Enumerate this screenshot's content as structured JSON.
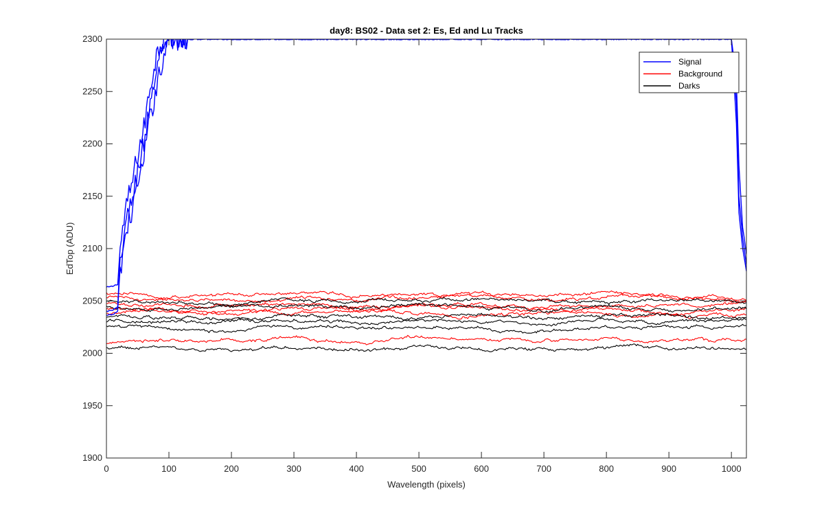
{
  "chart_data": {
    "type": "line",
    "title": "day8: BS02 - Data set 2: Es, Ed and Lu Tracks",
    "xlabel": "Wavelength (pixels)",
    "ylabel": "EdTop (ADU)",
    "xlim": [
      0,
      1024
    ],
    "ylim": [
      1900,
      2300
    ],
    "xticks": [
      0,
      100,
      200,
      300,
      400,
      500,
      600,
      700,
      800,
      900,
      1000
    ],
    "yticks": [
      1900,
      1950,
      2000,
      2050,
      2100,
      2150,
      2200,
      2250,
      2300
    ],
    "grid": false,
    "legend_location": "top-right",
    "legend": [
      {
        "label": "Signal",
        "color": "#0000ff"
      },
      {
        "label": "Background",
        "color": "#ff0000"
      },
      {
        "label": "Darks",
        "color": "#000000"
      }
    ],
    "series": [
      {
        "name": "Signal",
        "group": "Signal",
        "color": "#0000ff",
        "x": [
          0,
          10,
          18,
          22,
          30,
          40,
          50,
          60,
          70,
          80,
          90,
          100,
          110,
          120,
          1000,
          1008,
          1012,
          1018,
          1024
        ],
        "y": [
          2063,
          2064,
          2066,
          2100,
          2135,
          2160,
          2190,
          2215,
          2255,
          2285,
          2300,
          2300,
          2300,
          2300,
          2300,
          2260,
          2180,
          2120,
          2095
        ]
      },
      {
        "name": "Signal",
        "group": "Signal",
        "color": "#0000ff",
        "x": [
          0,
          10,
          18,
          22,
          30,
          40,
          50,
          60,
          70,
          80,
          90,
          100,
          110,
          120,
          1000,
          1008,
          1012,
          1018,
          1024
        ],
        "y": [
          2040,
          2041,
          2044,
          2090,
          2120,
          2145,
          2175,
          2200,
          2240,
          2270,
          2295,
          2300,
          2300,
          2300,
          2300,
          2240,
          2150,
          2110,
          2085
        ]
      },
      {
        "name": "Signal",
        "group": "Signal",
        "color": "#0000ff",
        "x": [
          0,
          10,
          18,
          22,
          30,
          40,
          50,
          60,
          70,
          80,
          90,
          100,
          110,
          120,
          1000,
          1008,
          1012,
          1018,
          1024
        ],
        "y": [
          2036,
          2037,
          2040,
          2080,
          2110,
          2135,
          2160,
          2185,
          2225,
          2255,
          2280,
          2300,
          2300,
          2300,
          2300,
          2220,
          2135,
          2100,
          2078
        ]
      },
      {
        "name": "Background",
        "group": "Background",
        "color": "#ff0000",
        "x": [
          0,
          100,
          200,
          300,
          400,
          500,
          600,
          700,
          800,
          900,
          1024
        ],
        "y": [
          2057,
          2054,
          2056,
          2057,
          2055,
          2058,
          2056,
          2054,
          2058,
          2055,
          2052
        ]
      },
      {
        "name": "Background",
        "group": "Background",
        "color": "#ff0000",
        "x": [
          0,
          100,
          200,
          300,
          400,
          500,
          600,
          700,
          800,
          900,
          1024
        ],
        "y": [
          2053,
          2051,
          2050,
          2053,
          2052,
          2054,
          2057,
          2050,
          2053,
          2054,
          2050
        ]
      },
      {
        "name": "Background",
        "group": "Background",
        "color": "#ff0000",
        "x": [
          0,
          100,
          200,
          300,
          400,
          500,
          600,
          700,
          800,
          900,
          1024
        ],
        "y": [
          2047,
          2046,
          2045,
          2048,
          2044,
          2047,
          2046,
          2043,
          2047,
          2046,
          2048
        ]
      },
      {
        "name": "Background",
        "group": "Background",
        "color": "#ff0000",
        "x": [
          0,
          100,
          200,
          300,
          400,
          500,
          600,
          700,
          800,
          900,
          1024
        ],
        "y": [
          2043,
          2041,
          2042,
          2044,
          2040,
          2045,
          2042,
          2040,
          2043,
          2038,
          2042
        ]
      },
      {
        "name": "Background",
        "group": "Background",
        "color": "#ff0000",
        "x": [
          0,
          100,
          200,
          300,
          400,
          500,
          600,
          700,
          800,
          900,
          1024
        ],
        "y": [
          2038,
          2039,
          2037,
          2040,
          2041,
          2038,
          2036,
          2039,
          2037,
          2036,
          2035
        ]
      },
      {
        "name": "Background",
        "group": "Background",
        "color": "#ff0000",
        "x": [
          0,
          100,
          200,
          300,
          400,
          500,
          600,
          700,
          800,
          900,
          1024
        ],
        "y": [
          2010,
          2012,
          2013,
          2014,
          2012,
          2015,
          2013,
          2011,
          2014,
          2012,
          2013
        ]
      },
      {
        "name": "Darks",
        "group": "Darks",
        "color": "#000000",
        "x": [
          0,
          100,
          200,
          300,
          400,
          500,
          600,
          700,
          800,
          900,
          1024
        ],
        "y": [
          2050,
          2049,
          2047,
          2051,
          2049,
          2050,
          2052,
          2050,
          2049,
          2051,
          2049
        ]
      },
      {
        "name": "Darks",
        "group": "Darks",
        "color": "#000000",
        "x": [
          0,
          100,
          200,
          300,
          400,
          500,
          600,
          700,
          800,
          900,
          1024
        ],
        "y": [
          2045,
          2043,
          2044,
          2046,
          2044,
          2047,
          2045,
          2042,
          2046,
          2043,
          2044
        ]
      },
      {
        "name": "Darks",
        "group": "Darks",
        "color": "#000000",
        "x": [
          0,
          100,
          200,
          300,
          400,
          500,
          600,
          700,
          800,
          900,
          1024
        ],
        "y": [
          2035,
          2034,
          2033,
          2036,
          2034,
          2035,
          2037,
          2033,
          2036,
          2035,
          2034
        ]
      },
      {
        "name": "Darks",
        "group": "Darks",
        "color": "#000000",
        "x": [
          0,
          100,
          200,
          300,
          400,
          500,
          600,
          700,
          800,
          900,
          1024
        ],
        "y": [
          2030,
          2031,
          2029,
          2032,
          2030,
          2031,
          2030,
          2028,
          2031,
          2030,
          2032
        ]
      },
      {
        "name": "Darks",
        "group": "Darks",
        "color": "#000000",
        "x": [
          0,
          100,
          200,
          300,
          400,
          500,
          600,
          700,
          800,
          900,
          1024
        ],
        "y": [
          2026,
          2024,
          2022,
          2025,
          2024,
          2025,
          2023,
          2022,
          2024,
          2025,
          2026
        ]
      },
      {
        "name": "Darks",
        "group": "Darks",
        "color": "#000000",
        "x": [
          0,
          100,
          200,
          300,
          400,
          500,
          600,
          700,
          800,
          900,
          1024
        ],
        "y": [
          2005,
          2006,
          2003,
          2006,
          2004,
          2006,
          2004,
          2003,
          2006,
          2005,
          2004
        ]
      }
    ]
  }
}
